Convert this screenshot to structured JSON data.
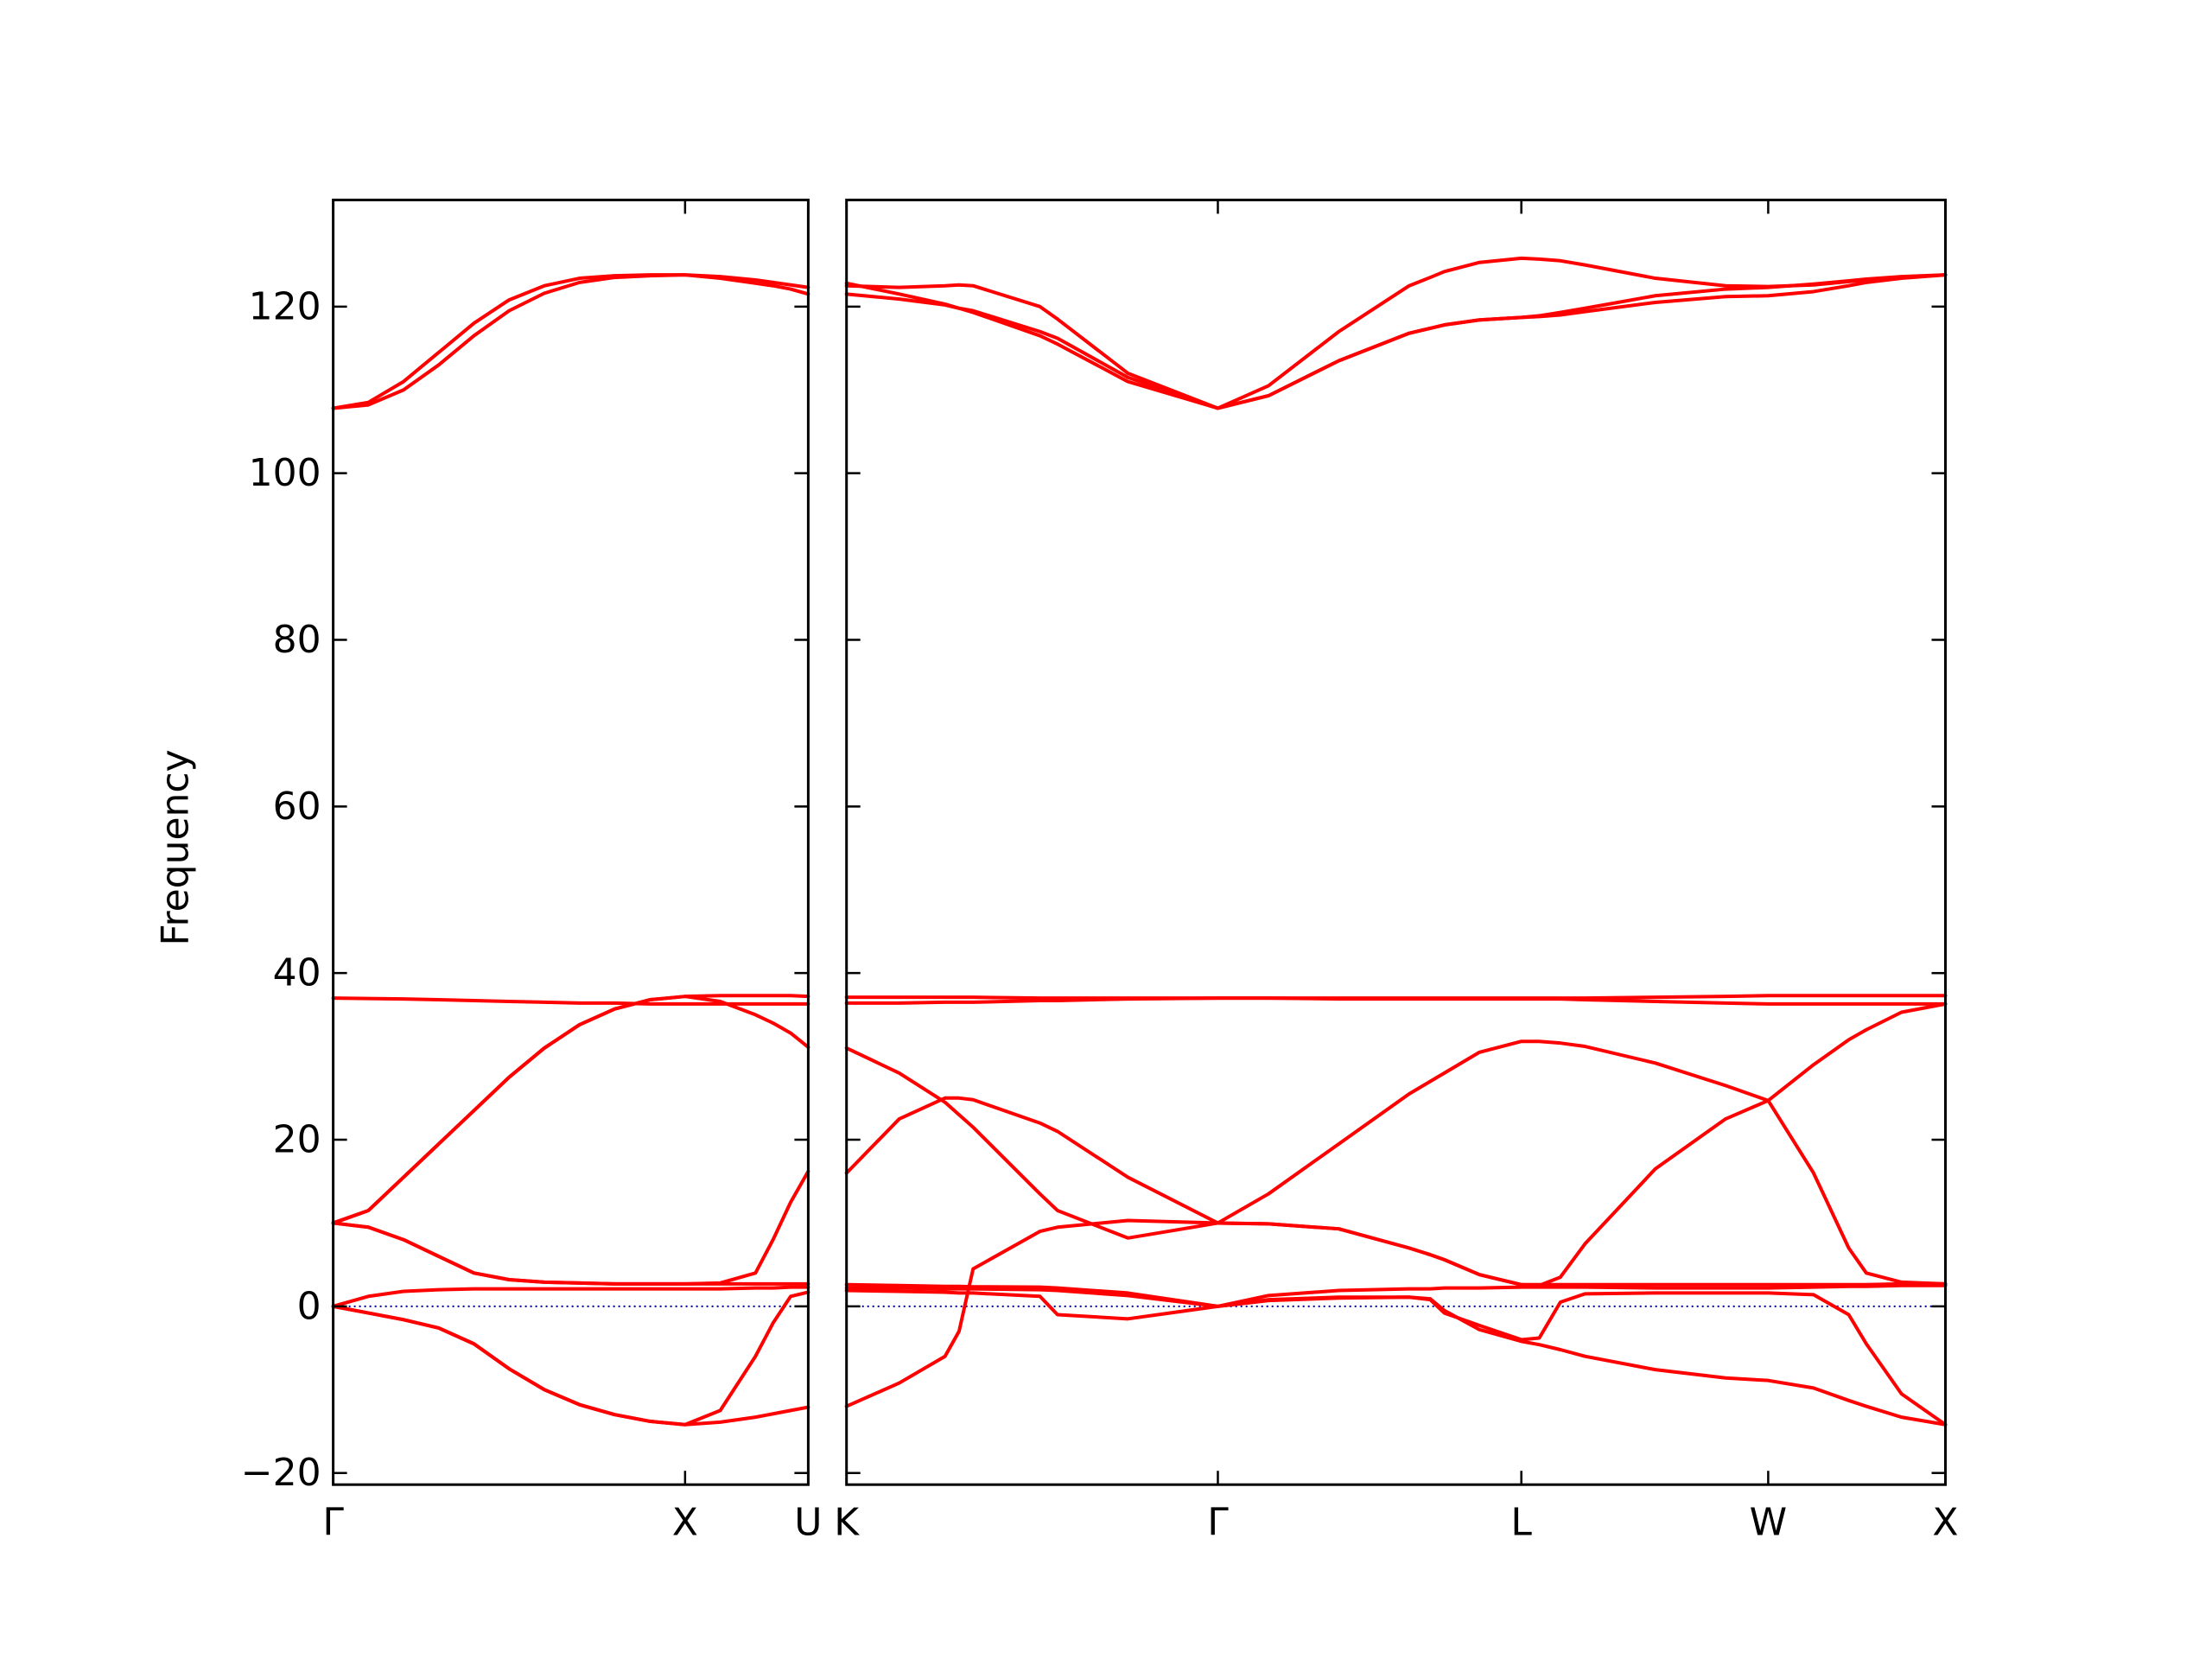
{
  "chart_data": [
    {
      "type": "line",
      "ylabel": "Frequency",
      "color": "red",
      "x": [
        0,
        0.1,
        0.2,
        0.3,
        0.4,
        0.5,
        0.6,
        0.7,
        0.8,
        0.9,
        1.0,
        1.1,
        1.2,
        1.25,
        1.3,
        1.35
      ],
      "xlim": [
        0,
        1.35
      ],
      "xticks": [
        {
          "value": 0,
          "label": "Γ"
        },
        {
          "value": 1.0,
          "label": "X"
        },
        {
          "value": 1.35,
          "label": "U"
        }
      ],
      "ylim": [
        -21.4,
        132.8
      ],
      "yticks": [
        {
          "value": -20,
          "label": "−20"
        },
        0,
        20,
        40,
        60,
        80,
        100,
        120
      ],
      "hline": {
        "y": 0,
        "color": "#00008b",
        "linestyle": "dotted"
      },
      "series": [
        {
          "values": [
            0,
            -0.8,
            -1.6,
            -2.6,
            -4.5,
            -7.5,
            -10,
            -11.8,
            -13,
            -13.8,
            -14.2,
            -13.9,
            -13.3,
            -12.9,
            -12.5,
            -12.1
          ]
        },
        {
          "values": [
            0,
            1.2,
            1.8,
            2.0,
            2.1,
            2.1,
            2.1,
            2.1,
            2.1,
            2.1,
            2.1,
            2.1,
            2.2,
            2.2,
            2.3,
            2.3
          ]
        },
        {
          "values": [
            0,
            -0.8,
            -1.6,
            -2.6,
            -4.5,
            -7.5,
            -10,
            -11.8,
            -13,
            -13.8,
            -14.2,
            -12.5,
            -6,
            -2,
            1.2,
            1.7
          ]
        },
        {
          "values": [
            10,
            9.5,
            8,
            6,
            4,
            3.2,
            2.9,
            2.8,
            2.7,
            2.7,
            2.7,
            2.8,
            4,
            8,
            12.5,
            16.2
          ]
        },
        {
          "values": [
            10,
            9.5,
            8,
            6,
            4,
            3.2,
            2.9,
            2.8,
            2.7,
            2.7,
            2.7,
            2.7,
            2.7,
            2.7,
            2.7,
            2.7
          ]
        },
        {
          "values": [
            10,
            11.5,
            15.5,
            19.5,
            23.5,
            27.5,
            31,
            33.8,
            35.7,
            36.8,
            37.2,
            36.6,
            35,
            34,
            32.8,
            31.1
          ]
        },
        {
          "values": [
            10,
            11.5,
            15.5,
            19.5,
            23.5,
            27.5,
            31,
            33.8,
            35.7,
            36.8,
            37.2,
            37.3,
            37.3,
            37.3,
            37.3,
            37.2
          ]
        },
        {
          "values": [
            37,
            36.95,
            36.9,
            36.8,
            36.7,
            36.6,
            36.5,
            36.4,
            36.4,
            36.3,
            36.3,
            36.3,
            36.3,
            36.3,
            36.3,
            36.3
          ]
        },
        {
          "values": [
            107.8,
            108.5,
            111,
            114.5,
            118,
            120.8,
            122.5,
            123.4,
            123.7,
            123.8,
            123.8,
            123.6,
            123.2,
            122.9,
            122.6,
            122.3
          ]
        },
        {
          "values": [
            107.8,
            108.2,
            110,
            113,
            116.5,
            119.5,
            121.6,
            122.9,
            123.5,
            123.7,
            123.8,
            123.4,
            122.8,
            122.5,
            122.1,
            121.5
          ]
        }
      ]
    },
    {
      "type": "line",
      "color": "red",
      "ytick_labels": false,
      "x": [
        0,
        0.15,
        0.28,
        0.32,
        0.36,
        0.55,
        0.6,
        0.8,
        1.056,
        1.2,
        1.4,
        1.6,
        1.66,
        1.7,
        1.8,
        1.919,
        1.97,
        2.03,
        2.1,
        2.3,
        2.5,
        2.621,
        2.75,
        2.85,
        2.9,
        3.0,
        3.125
      ],
      "xlim": [
        0,
        3.125
      ],
      "xticks": [
        {
          "value": 0,
          "label": "K"
        },
        {
          "value": 1.056,
          "label": "Γ"
        },
        {
          "value": 1.919,
          "label": "L"
        },
        {
          "value": 2.621,
          "label": "W"
        },
        {
          "value": 3.125,
          "label": "X"
        }
      ],
      "ylim": [
        -21.4,
        132.8
      ],
      "yticks": [
        -20,
        0,
        20,
        40,
        60,
        80,
        100,
        120
      ],
      "hline": {
        "y": 0,
        "color": "#00008b",
        "linestyle": "dotted"
      },
      "series": [
        {
          "values": [
            -12,
            -9.2,
            -6,
            -3,
            4.5,
            9,
            9.5,
            10.3,
            10,
            13.5,
            19.5,
            25.5,
            27,
            28,
            30.5,
            31.8,
            31.8,
            31.6,
            31.2,
            29.2,
            26.5,
            24.7,
            29,
            32,
            33.2,
            35.3,
            36.3
          ]
        },
        {
          "values": [
            31,
            28,
            24.5,
            23,
            21.5,
            13.5,
            11.5,
            8.2,
            10,
            9.9,
            9.3,
            7,
            6.2,
            5.6,
            3.8,
            2.6,
            2.6,
            2.6,
            2.6,
            2.6,
            2.6,
            2.6,
            2.6,
            2.6,
            2.6,
            2.7,
            2.7
          ]
        },
        {
          "values": [
            16,
            22.5,
            25,
            25,
            24.8,
            22,
            21,
            15.5,
            10,
            9.9,
            9.3,
            7,
            6.2,
            5.6,
            3.8,
            2.6,
            2.5,
            3.5,
            7.5,
            16.5,
            22.5,
            24.7,
            16,
            7,
            4,
            2.9,
            2.7
          ]
        },
        {
          "values": [
            1.9,
            1.8,
            1.7,
            1.6,
            1.6,
            1.2,
            -1,
            -1.5,
            0,
            0.7,
            1.0,
            1.1,
            0.8,
            -0.8,
            -2.3,
            -4.0,
            -3.8,
            0.5,
            1.5,
            1.6,
            1.6,
            1.6,
            1.4,
            -1.0,
            -4.5,
            -10.5,
            -14.2
          ]
        },
        {
          "values": [
            2.2,
            2.2,
            2.1,
            2.1,
            2.1,
            2.0,
            1.9,
            1.3,
            0,
            0.8,
            1.1,
            1.1,
            0.9,
            -0.5,
            -2.8,
            -4.2,
            -4.6,
            -5.2,
            -6,
            -7.6,
            -8.6,
            -8.9,
            -9.8,
            -11.3,
            -12,
            -13.3,
            -14.2
          ]
        },
        {
          "values": [
            2.6,
            2.5,
            2.4,
            2.4,
            2.35,
            2.3,
            2.2,
            1.6,
            0,
            1.3,
            1.9,
            2.1,
            2.1,
            2.2,
            2.2,
            2.3,
            2.3,
            2.3,
            2.3,
            2.2,
            2.2,
            2.2,
            2.3,
            2.4,
            2.4,
            2.5,
            2.5
          ]
        },
        {
          "values": [
            36.4,
            36.4,
            36.5,
            36.5,
            36.5,
            36.7,
            36.7,
            36.9,
            37,
            37,
            36.9,
            36.9,
            36.9,
            36.9,
            36.9,
            36.9,
            36.9,
            36.9,
            36.8,
            36.6,
            36.4,
            36.3,
            36.3,
            36.3,
            36.3,
            36.3,
            36.3
          ]
        },
        {
          "values": [
            37.1,
            37.1,
            37.1,
            37.1,
            37.1,
            37,
            37,
            37,
            37,
            37,
            37,
            37,
            37,
            37,
            37,
            37,
            37,
            37,
            37,
            37.1,
            37.2,
            37.3,
            37.3,
            37.3,
            37.3,
            37.3,
            37.3
          ]
        },
        {
          "values": [
            122.5,
            122.3,
            122.5,
            122.6,
            122.5,
            120,
            118.5,
            112,
            107.8,
            110.5,
            117,
            122.5,
            123.5,
            124.2,
            125.3,
            125.8,
            125.7,
            125.5,
            125,
            123.4,
            122.5,
            122.4,
            122.6,
            123,
            123.2,
            123.5,
            123.8
          ]
        },
        {
          "values": [
            122.8,
            121.5,
            120.3,
            119.8,
            119.3,
            116.5,
            115.5,
            111,
            107.8,
            109.3,
            113.5,
            116.8,
            117.4,
            117.8,
            118.4,
            118.7,
            118.8,
            119,
            119.4,
            120.5,
            121.2,
            121.3,
            121.8,
            122.5,
            122.9,
            123.4,
            123.8
          ]
        },
        {
          "values": [
            121.5,
            120.9,
            120.2,
            119.8,
            119.5,
            117,
            116.2,
            111.5,
            107.8,
            109.3,
            113.5,
            116.8,
            117.4,
            117.8,
            118.4,
            118.7,
            118.9,
            119.3,
            119.8,
            121.3,
            122.1,
            122.3,
            122.7,
            123.1,
            123.3,
            123.6,
            123.8
          ]
        }
      ]
    }
  ]
}
